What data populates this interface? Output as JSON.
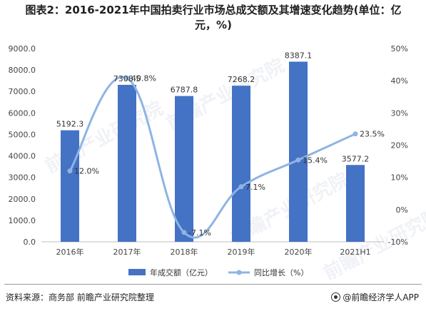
{
  "title": {
    "line1": "图表2：2016-2021年中国拍卖行业市场总成交额及其增速变化趋势(单位：亿",
    "line2": "元，%)"
  },
  "chart_data": {
    "type": "bar",
    "categories": [
      "2016年",
      "2017年",
      "2018年",
      "2019年",
      "2020年",
      "2021H1"
    ],
    "series": [
      {
        "name": "年成交额（亿元）",
        "type": "bar",
        "axis": "left",
        "values": [
          5192.3,
          7308.5,
          6787.8,
          7268.2,
          8387.1,
          3577.2
        ],
        "labels": [
          "5192.3",
          "7308.5",
          "6787.8",
          "7268.2",
          "8387.1",
          "3577.2"
        ],
        "color": "#4472c4"
      },
      {
        "name": "同比增长（%）",
        "type": "line",
        "axis": "right",
        "values": [
          12.0,
          40.8,
          -7.1,
          7.1,
          15.4,
          23.5
        ],
        "labels": [
          "12.0%",
          "40.8%",
          "-7.1%",
          "7.1%",
          "15.4%",
          "23.5%"
        ],
        "color": "#8fb4e3"
      }
    ],
    "y_left": {
      "ylim": [
        0,
        9000
      ],
      "ticks": [
        "0.0",
        "1000.0",
        "2000.0",
        "3000.0",
        "4000.0",
        "5000.0",
        "6000.0",
        "7000.0",
        "8000.0",
        "9000.0"
      ]
    },
    "y_right": {
      "ylim": [
        -10,
        50
      ],
      "ticks": [
        "-10%",
        "0%",
        "10%",
        "20%",
        "30%",
        "40%",
        "50%"
      ]
    },
    "grid": false,
    "legend": "bottom-center"
  },
  "watermark": "前瞻产业研究院",
  "footer": {
    "source": "资料来源：商务部 前瞻产业研究院整理",
    "brand": "@前瞻经济学人APP"
  }
}
